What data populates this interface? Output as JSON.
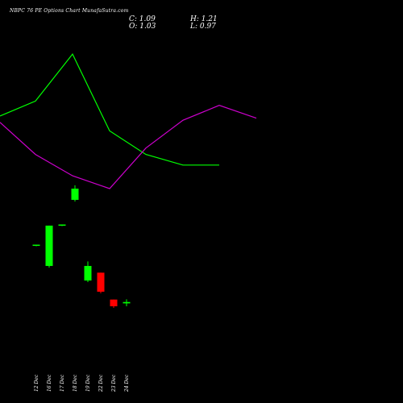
{
  "header": {
    "title": "NBPC 76  PE Options  Chart MunafaSutra.com",
    "close": "C: 1.09",
    "high": "H: 1.21",
    "open": "O: 1.03",
    "low": "L: 0.97"
  },
  "chart_data": {
    "type": "candlestick",
    "ticker": "NBPC 76 PE",
    "x": [
      "12 Dec",
      "16 Dec",
      "17 Dec",
      "18 Dec",
      "19 Dec",
      "22 Dec",
      "23 Dec",
      "24 Dec"
    ],
    "candles": [
      {
        "date": "12 Dec",
        "open": 3.65,
        "high": 3.65,
        "low": 3.65,
        "close": 3.65,
        "color": "#00ff00"
      },
      {
        "date": "16 Dec",
        "open": 2.7,
        "high": 4.5,
        "low": 2.7,
        "close": 4.5,
        "color": "#00ff00"
      },
      {
        "date": "17 Dec",
        "open": 4.55,
        "high": 4.55,
        "low": 4.55,
        "close": 4.55,
        "color": "#00ff00"
      },
      {
        "date": "18 Dec",
        "open": 5.65,
        "high": 6.3,
        "low": 5.65,
        "close": 6.15,
        "color": "#00ff00"
      },
      {
        "date": "19 Dec",
        "open": 2.05,
        "high": 2.9,
        "low": 2.05,
        "close": 2.7,
        "color": "#00ff00"
      },
      {
        "date": "22 Dec",
        "open": 2.4,
        "high": 2.4,
        "low": 1.55,
        "close": 1.55,
        "color": "#ff0000"
      },
      {
        "date": "23 Dec",
        "open": 1.2,
        "high": 1.2,
        "low": 0.9,
        "close": 0.9,
        "color": "#ff0000"
      },
      {
        "date": "24 Dec",
        "open": 1.03,
        "high": 1.21,
        "low": 0.97,
        "close": 1.09,
        "color": "#00ff00"
      }
    ],
    "bands": [
      {
        "color": "#00ff00",
        "values": [
          null,
          null,
          null,
          3.4,
          4.1,
          6.3,
          2.7,
          1.6,
          1.1,
          1.1
        ]
      },
      {
        "color": "#cc00cc",
        "values": [
          null,
          null,
          null,
          3.1,
          1.6,
          0.6,
          0.0,
          1.9,
          3.2,
          3.9,
          3.3
        ]
      }
    ],
    "colors": {
      "background": "#000000",
      "up": "#00ff00",
      "down": "#ff0000",
      "upper_band": "#00ff00",
      "lower_band": "#cc00cc"
    }
  }
}
